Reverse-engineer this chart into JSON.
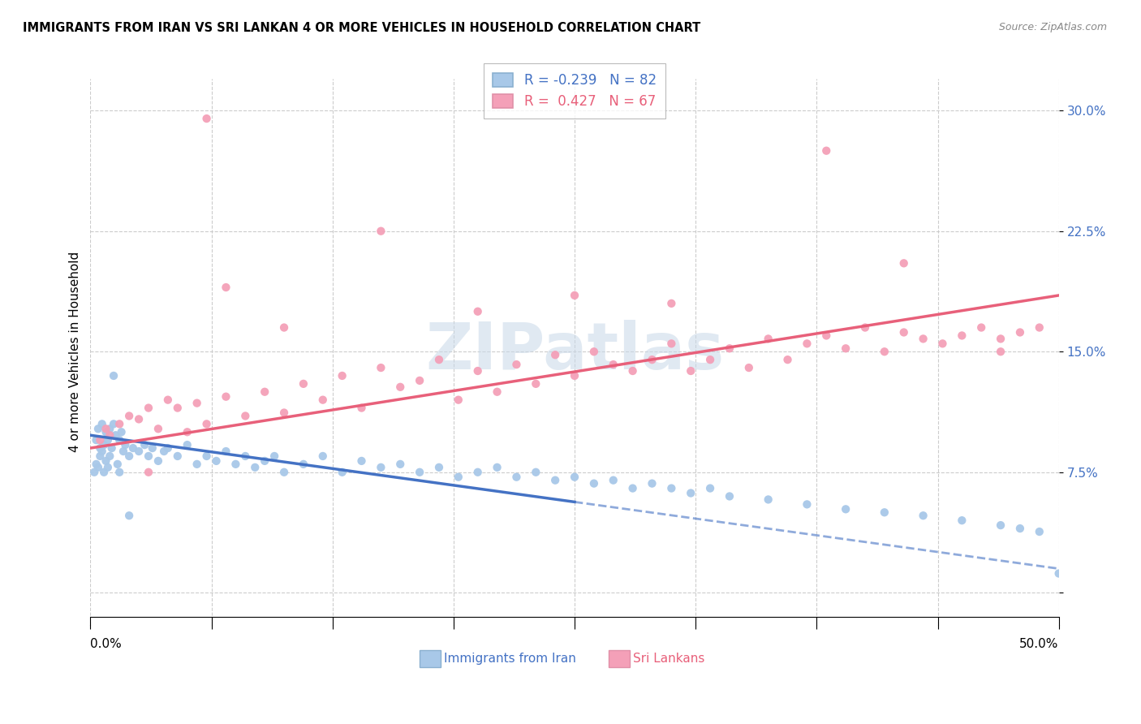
{
  "title": "IMMIGRANTS FROM IRAN VS SRI LANKAN 4 OR MORE VEHICLES IN HOUSEHOLD CORRELATION CHART",
  "source": "Source: ZipAtlas.com",
  "ylabel": "4 or more Vehicles in Household",
  "xlim": [
    0.0,
    50.0
  ],
  "ylim": [
    -2.0,
    32.0
  ],
  "yticks": [
    0.0,
    7.5,
    15.0,
    22.5,
    30.0
  ],
  "ytick_labels": [
    "",
    "7.5%",
    "15.0%",
    "22.5%",
    "30.0%"
  ],
  "xticks": [
    0.0,
    6.25,
    12.5,
    18.75,
    25.0,
    31.25,
    37.5,
    43.75,
    50.0
  ],
  "legend_iran_r": "R = -0.239",
  "legend_iran_n": "N = 82",
  "legend_sri_r": "R =  0.427",
  "legend_sri_n": "N = 67",
  "iran_color": "#a8c8e8",
  "sri_color": "#f4a0b8",
  "iran_line_color": "#4472c4",
  "sri_line_color": "#e8607a",
  "iran_line_solid_end": 25.0,
  "iran_line_x0": 0.0,
  "iran_line_y0": 9.8,
  "iran_line_x1": 50.0,
  "iran_line_y1": 1.5,
  "sri_line_x0": 0.0,
  "sri_line_y0": 9.0,
  "sri_line_x1": 50.0,
  "sri_line_y1": 18.5,
  "watermark_text": "ZIPatlas",
  "watermark_color": "#c8d8e8",
  "background_color": "#ffffff",
  "iran_x": [
    0.2,
    0.3,
    0.3,
    0.4,
    0.4,
    0.5,
    0.5,
    0.6,
    0.6,
    0.7,
    0.7,
    0.8,
    0.8,
    0.9,
    0.9,
    1.0,
    1.0,
    1.1,
    1.2,
    1.3,
    1.4,
    1.5,
    1.5,
    1.6,
    1.7,
    1.8,
    2.0,
    2.2,
    2.5,
    2.8,
    3.0,
    3.2,
    3.5,
    3.8,
    4.0,
    4.5,
    5.0,
    5.5,
    6.0,
    6.5,
    7.0,
    7.5,
    8.0,
    8.5,
    9.0,
    9.5,
    10.0,
    11.0,
    12.0,
    13.0,
    14.0,
    15.0,
    16.0,
    17.0,
    18.0,
    19.0,
    20.0,
    21.0,
    22.0,
    23.0,
    24.0,
    25.0,
    26.0,
    27.0,
    28.0,
    29.0,
    30.0,
    31.0,
    32.0,
    33.0,
    35.0,
    37.0,
    39.0,
    41.0,
    43.0,
    45.0,
    47.0,
    48.0,
    49.0,
    50.0,
    2.0,
    1.2
  ],
  "iran_y": [
    7.5,
    9.5,
    8.0,
    10.2,
    7.8,
    9.0,
    8.5,
    10.5,
    8.8,
    9.2,
    7.5,
    10.0,
    8.2,
    9.5,
    7.8,
    10.2,
    8.5,
    9.0,
    10.5,
    9.8,
    8.0,
    9.5,
    7.5,
    10.0,
    8.8,
    9.2,
    8.5,
    9.0,
    8.8,
    9.2,
    8.5,
    9.0,
    8.2,
    8.8,
    9.0,
    8.5,
    9.2,
    8.0,
    8.5,
    8.2,
    8.8,
    8.0,
    8.5,
    7.8,
    8.2,
    8.5,
    7.5,
    8.0,
    8.5,
    7.5,
    8.2,
    7.8,
    8.0,
    7.5,
    7.8,
    7.2,
    7.5,
    7.8,
    7.2,
    7.5,
    7.0,
    7.2,
    6.8,
    7.0,
    6.5,
    6.8,
    6.5,
    6.2,
    6.5,
    6.0,
    5.8,
    5.5,
    5.2,
    5.0,
    4.8,
    4.5,
    4.2,
    4.0,
    3.8,
    1.2,
    4.8,
    13.5
  ],
  "sri_x": [
    0.5,
    0.8,
    1.0,
    1.5,
    2.0,
    2.5,
    3.0,
    3.5,
    4.0,
    4.5,
    5.0,
    5.5,
    6.0,
    7.0,
    8.0,
    9.0,
    10.0,
    11.0,
    12.0,
    13.0,
    14.0,
    15.0,
    16.0,
    17.0,
    18.0,
    19.0,
    20.0,
    21.0,
    22.0,
    23.0,
    24.0,
    25.0,
    26.0,
    27.0,
    28.0,
    29.0,
    30.0,
    31.0,
    32.0,
    33.0,
    34.0,
    35.0,
    36.0,
    37.0,
    38.0,
    39.0,
    40.0,
    41.0,
    42.0,
    43.0,
    44.0,
    45.0,
    46.0,
    47.0,
    48.0,
    49.0,
    7.0,
    10.0,
    15.0,
    20.0,
    25.0,
    30.0,
    38.0,
    42.0,
    47.0,
    6.0,
    3.0
  ],
  "sri_y": [
    9.5,
    10.2,
    9.8,
    10.5,
    11.0,
    10.8,
    11.5,
    10.2,
    12.0,
    11.5,
    10.0,
    11.8,
    10.5,
    12.2,
    11.0,
    12.5,
    11.2,
    13.0,
    12.0,
    13.5,
    11.5,
    14.0,
    12.8,
    13.2,
    14.5,
    12.0,
    13.8,
    12.5,
    14.2,
    13.0,
    14.8,
    13.5,
    15.0,
    14.2,
    13.8,
    14.5,
    15.5,
    13.8,
    14.5,
    15.2,
    14.0,
    15.8,
    14.5,
    15.5,
    16.0,
    15.2,
    16.5,
    15.0,
    16.2,
    15.8,
    15.5,
    16.0,
    16.5,
    15.8,
    16.2,
    16.5,
    19.0,
    16.5,
    22.5,
    17.5,
    18.5,
    18.0,
    27.5,
    20.5,
    15.0,
    29.5,
    7.5
  ]
}
